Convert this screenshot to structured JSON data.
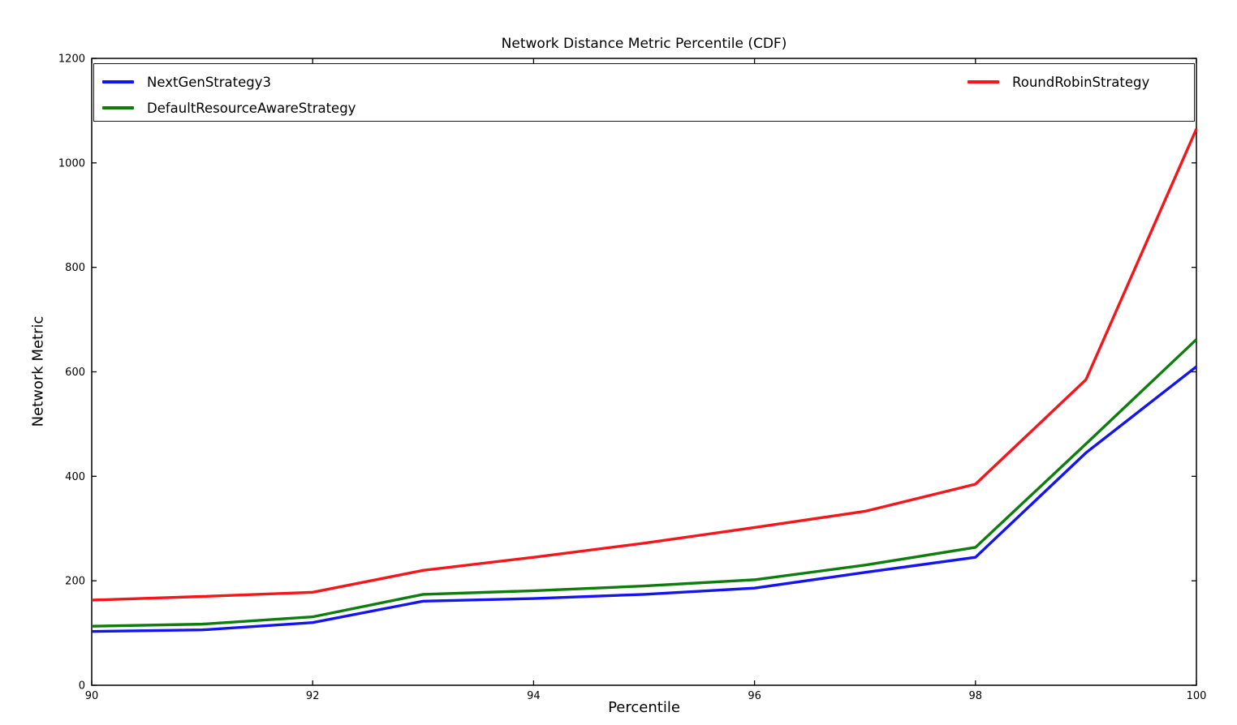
{
  "chart_data": {
    "type": "line",
    "title": "Network Distance Metric Percentile (CDF)",
    "xlabel": "Percentile",
    "ylabel": "Network Metric",
    "x": [
      90,
      91,
      92,
      93,
      94,
      95,
      96,
      97,
      98,
      99,
      100
    ],
    "series": [
      {
        "name": "NextGenStrategy3",
        "color": "#1414f0",
        "values": [
          103,
          106,
          120,
          161,
          166,
          174,
          186,
          216,
          245,
          445,
          610
        ]
      },
      {
        "name": "DefaultResourceAwareStrategy",
        "color": "#0e7d0e",
        "values": [
          113,
          117,
          131,
          174,
          181,
          190,
          202,
          230,
          264,
          462,
          662
        ]
      },
      {
        "name": "RoundRobinStrategy",
        "color": "#f5161c",
        "values": [
          163,
          170,
          178,
          220,
          245,
          272,
          302,
          333,
          385,
          585,
          1065
        ]
      }
    ],
    "xlim": [
      90,
      100
    ],
    "ylim": [
      0,
      1200
    ],
    "xticks": [
      90,
      92,
      94,
      96,
      98,
      100
    ],
    "yticks": [
      0,
      200,
      400,
      600,
      800,
      1000,
      1200
    ],
    "grid": false,
    "legend": {
      "position": "top",
      "mode": "expand",
      "ncol": 2,
      "frame": true
    },
    "axis_color": "#000000",
    "tick_label_color": "#000000"
  }
}
